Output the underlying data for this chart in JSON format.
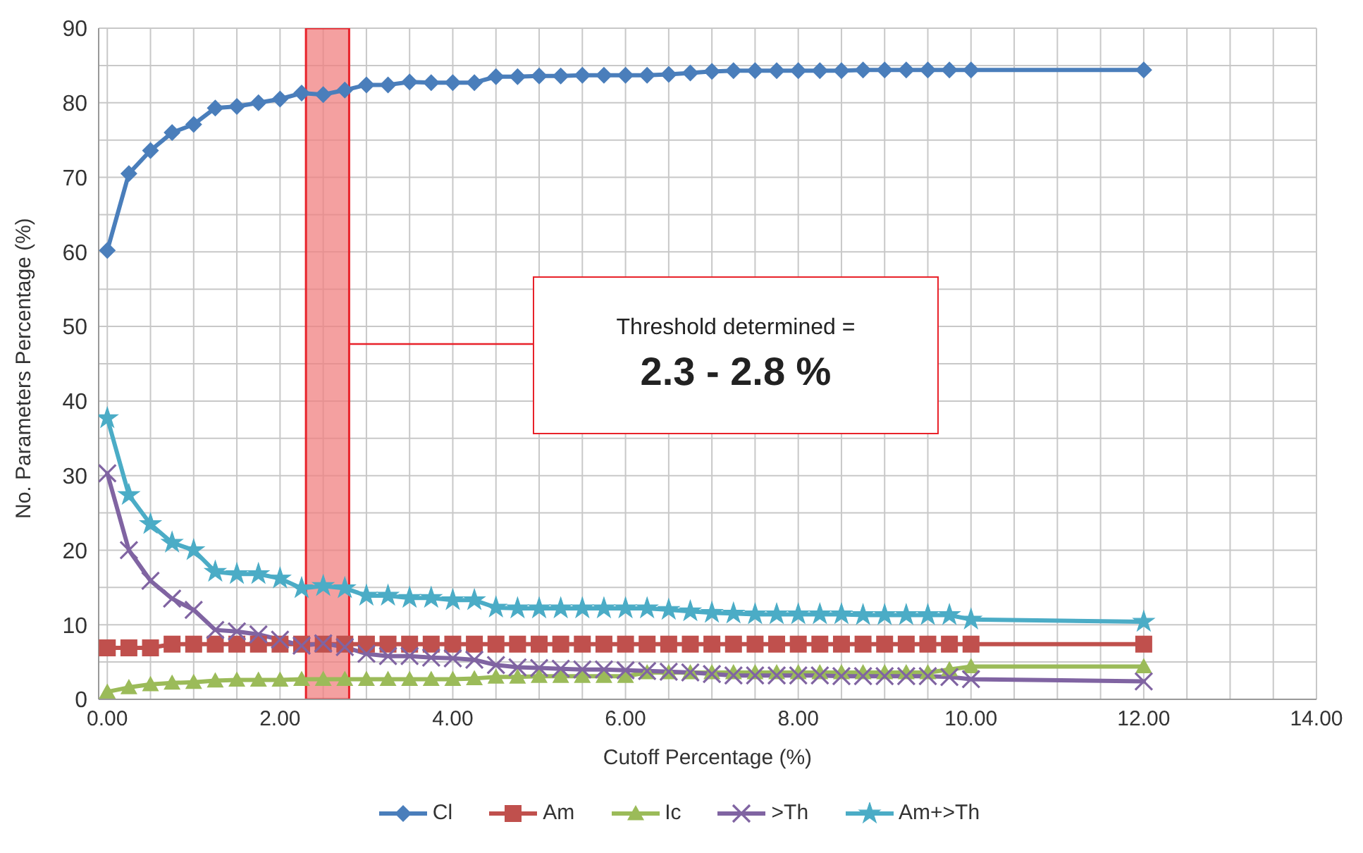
{
  "chart_data": {
    "type": "line",
    "xlabel": "Cutoff Percentage (%)",
    "ylabel": "No. Parameters Percentage (%)",
    "x": [
      0,
      0.25,
      0.5,
      0.75,
      1,
      1.25,
      1.5,
      1.75,
      2,
      2.25,
      2.5,
      2.75,
      3,
      3.25,
      3.5,
      3.75,
      4,
      4.25,
      4.5,
      4.75,
      5,
      5.25,
      5.5,
      5.75,
      6,
      6.25,
      6.5,
      6.75,
      7,
      7.25,
      7.5,
      7.75,
      8,
      8.25,
      8.5,
      8.75,
      9,
      9.25,
      9.5,
      9.75,
      10,
      12
    ],
    "series": [
      {
        "name": "Cl",
        "color": "#4a7ebb",
        "marker": "diamond",
        "values": [
          60.2,
          70.5,
          73.6,
          76.0,
          77.1,
          79.3,
          79.5,
          80.0,
          80.5,
          81.3,
          81.1,
          81.7,
          82.4,
          82.4,
          82.8,
          82.7,
          82.7,
          82.7,
          83.5,
          83.5,
          83.6,
          83.6,
          83.7,
          83.7,
          83.7,
          83.7,
          83.8,
          84.0,
          84.2,
          84.3,
          84.3,
          84.3,
          84.3,
          84.3,
          84.3,
          84.4,
          84.4,
          84.4,
          84.4,
          84.4,
          84.4,
          84.4
        ]
      },
      {
        "name": "Am",
        "color": "#c0504d",
        "marker": "square",
        "values": [
          6.9,
          6.9,
          6.9,
          7.4,
          7.4,
          7.4,
          7.4,
          7.4,
          7.4,
          7.4,
          7.4,
          7.4,
          7.4,
          7.4,
          7.4,
          7.4,
          7.4,
          7.4,
          7.4,
          7.4,
          7.4,
          7.4,
          7.4,
          7.4,
          7.4,
          7.4,
          7.4,
          7.4,
          7.4,
          7.4,
          7.4,
          7.4,
          7.4,
          7.4,
          7.4,
          7.4,
          7.4,
          7.4,
          7.4,
          7.4,
          7.4,
          7.4
        ]
      },
      {
        "name": "Ic",
        "color": "#9bbb59",
        "marker": "triangle",
        "values": [
          1.0,
          1.6,
          2.0,
          2.2,
          2.3,
          2.5,
          2.6,
          2.6,
          2.6,
          2.7,
          2.7,
          2.7,
          2.7,
          2.7,
          2.7,
          2.7,
          2.7,
          2.8,
          3.0,
          3.0,
          3.1,
          3.1,
          3.1,
          3.1,
          3.1,
          3.6,
          3.6,
          3.6,
          3.6,
          3.6,
          3.6,
          3.6,
          3.6,
          3.6,
          3.6,
          3.6,
          3.6,
          3.6,
          3.6,
          4.0,
          4.4,
          4.4
        ]
      },
      {
        "name": ">Th",
        "color": "#8064a2",
        "marker": "cross",
        "values": [
          30.3,
          20.0,
          15.9,
          13.5,
          12.0,
          9.3,
          9.1,
          8.7,
          8.0,
          7.2,
          7.5,
          7.0,
          6.1,
          5.8,
          5.8,
          5.6,
          5.5,
          5.3,
          4.6,
          4.3,
          4.2,
          4.1,
          4.0,
          4.0,
          3.9,
          3.8,
          3.7,
          3.6,
          3.4,
          3.2,
          3.2,
          3.2,
          3.2,
          3.2,
          3.1,
          3.1,
          3.1,
          3.1,
          3.1,
          3.0,
          2.7,
          2.4
        ]
      },
      {
        "name": "Am+>Th",
        "color": "#4bacc6",
        "marker": "star",
        "values": [
          37.7,
          27.4,
          23.5,
          21.0,
          20.0,
          17.1,
          16.8,
          16.8,
          16.2,
          14.9,
          15.2,
          14.9,
          13.9,
          13.9,
          13.6,
          13.6,
          13.3,
          13.3,
          12.3,
          12.2,
          12.2,
          12.2,
          12.2,
          12.2,
          12.2,
          12.2,
          12.0,
          11.8,
          11.6,
          11.5,
          11.4,
          11.4,
          11.4,
          11.4,
          11.4,
          11.3,
          11.3,
          11.3,
          11.3,
          11.3,
          10.7,
          10.4
        ]
      }
    ],
    "xlim": [
      -0.1,
      14
    ],
    "xticks": [
      {
        "value": 0,
        "label": "0.00"
      },
      {
        "value": 0.5,
        "label": null
      },
      {
        "value": 1,
        "label": null
      },
      {
        "value": 1.5,
        "label": null
      },
      {
        "value": 2,
        "label": "2.00"
      },
      {
        "value": 2.5,
        "label": null
      },
      {
        "value": 3,
        "label": null
      },
      {
        "value": 3.5,
        "label": null
      },
      {
        "value": 4,
        "label": "4.00"
      },
      {
        "value": 4.5,
        "label": null
      },
      {
        "value": 5,
        "label": null
      },
      {
        "value": 5.5,
        "label": null
      },
      {
        "value": 6,
        "label": "6.00"
      },
      {
        "value": 6.5,
        "label": null
      },
      {
        "value": 7,
        "label": null
      },
      {
        "value": 7.5,
        "label": null
      },
      {
        "value": 8,
        "label": "8.00"
      },
      {
        "value": 8.5,
        "label": null
      },
      {
        "value": 9,
        "label": null
      },
      {
        "value": 9.5,
        "label": null
      },
      {
        "value": 10,
        "label": "10.00"
      },
      {
        "value": 10.5,
        "label": null
      },
      {
        "value": 11,
        "label": null
      },
      {
        "value": 11.5,
        "label": null
      },
      {
        "value": 12,
        "label": "12.00"
      },
      {
        "value": 12.5,
        "label": null
      },
      {
        "value": 13,
        "label": null
      },
      {
        "value": 13.5,
        "label": null
      },
      {
        "value": 14,
        "label": "14.00"
      }
    ],
    "ylim": [
      0,
      90
    ],
    "yticks": [
      0,
      {
        "value": 5,
        "label": null
      },
      10,
      {
        "value": 15,
        "label": null
      },
      20,
      {
        "value": 25,
        "label": null
      },
      30,
      {
        "value": 35,
        "label": null
      },
      40,
      {
        "value": 45,
        "label": null
      },
      50,
      {
        "value": 55,
        "label": null
      },
      60,
      {
        "value": 65,
        "label": null
      },
      70,
      {
        "value": 75,
        "label": null
      },
      80,
      {
        "value": 85,
        "label": null
      },
      90
    ],
    "grid": true,
    "legend": "bottom",
    "line_style": "solid",
    "bands": [
      {
        "axis": "x",
        "from": 2.3,
        "to": 2.8,
        "color": "#f08080"
      }
    ],
    "annotations": [
      "Threshold determined =",
      "2.3 - 2.8 %"
    ]
  }
}
